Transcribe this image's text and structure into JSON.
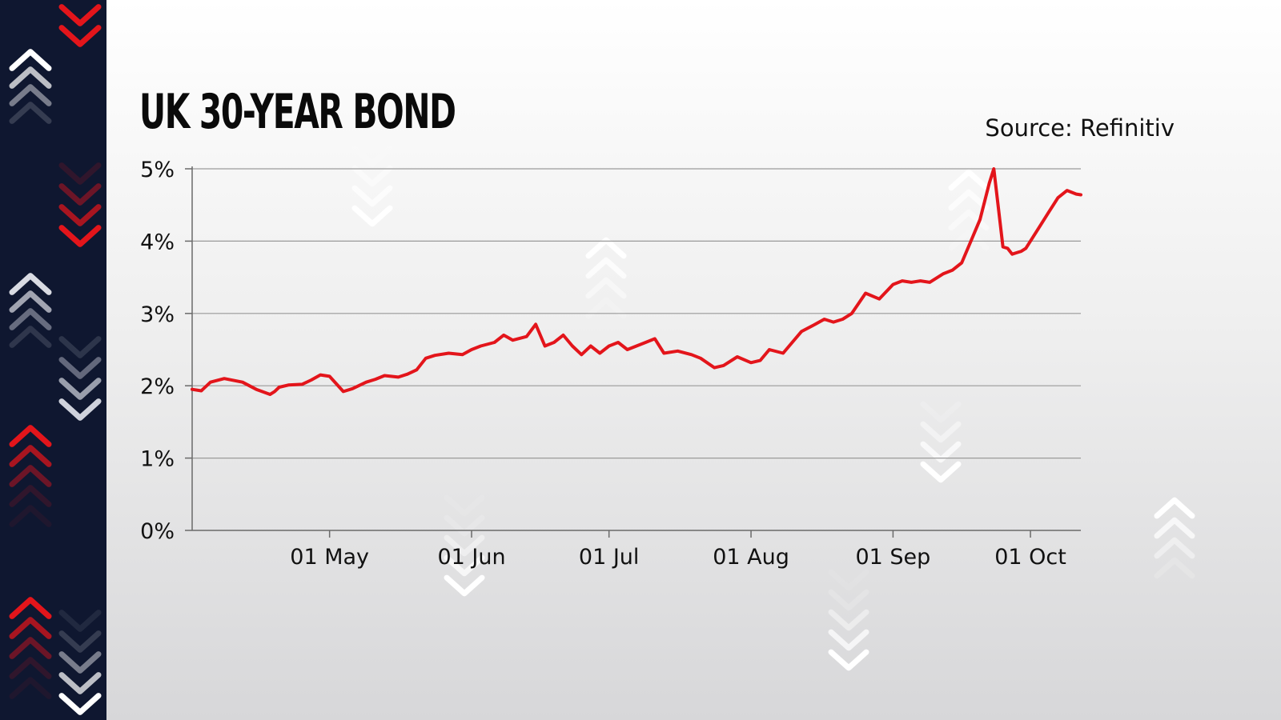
{
  "chart_data": {
    "type": "line",
    "title": "UK 30-YEAR BOND",
    "source": "Source: Refinitiv",
    "xlabel": "",
    "ylabel": "",
    "x_range": [
      "2022-04-01",
      "2022-10-12"
    ],
    "ylim": [
      0,
      5
    ],
    "y_ticks": [
      0,
      1,
      2,
      3,
      4,
      5
    ],
    "y_tick_labels": [
      "0%",
      "1%",
      "2%",
      "3%",
      "4%",
      "5%"
    ],
    "x_ticks": [
      "2022-05-01",
      "2022-06-01",
      "2022-07-01",
      "2022-08-01",
      "2022-09-01",
      "2022-10-01"
    ],
    "x_tick_labels": [
      "01 May",
      "01 Jun",
      "01 Jul",
      "01 Aug",
      "01 Sep",
      "01 Oct"
    ],
    "grid": true,
    "line_color": "#e3151b",
    "series": [
      {
        "name": "",
        "x": [
          "2022-04-01",
          "2022-04-03",
          "2022-04-05",
          "2022-04-08",
          "2022-04-12",
          "2022-04-15",
          "2022-04-18",
          "2022-04-19",
          "2022-04-20",
          "2022-04-22",
          "2022-04-25",
          "2022-04-27",
          "2022-04-29",
          "2022-05-01",
          "2022-05-04",
          "2022-05-06",
          "2022-05-09",
          "2022-05-11",
          "2022-05-13",
          "2022-05-16",
          "2022-05-18",
          "2022-05-20",
          "2022-05-22",
          "2022-05-24",
          "2022-05-27",
          "2022-05-30",
          "2022-06-01",
          "2022-06-03",
          "2022-06-06",
          "2022-06-08",
          "2022-06-10",
          "2022-06-13",
          "2022-06-15",
          "2022-06-17",
          "2022-06-19",
          "2022-06-21",
          "2022-06-23",
          "2022-06-25",
          "2022-06-27",
          "2022-06-29",
          "2022-07-01",
          "2022-07-03",
          "2022-07-05",
          "2022-07-07",
          "2022-07-09",
          "2022-07-11",
          "2022-07-13",
          "2022-07-16",
          "2022-07-19",
          "2022-07-21",
          "2022-07-24",
          "2022-07-26",
          "2022-07-29",
          "2022-08-01",
          "2022-08-03",
          "2022-08-05",
          "2022-08-08",
          "2022-08-10",
          "2022-08-12",
          "2022-08-15",
          "2022-08-17",
          "2022-08-19",
          "2022-08-21",
          "2022-08-23",
          "2022-08-26",
          "2022-08-29",
          "2022-09-01",
          "2022-09-03",
          "2022-09-05",
          "2022-09-07",
          "2022-09-09",
          "2022-09-12",
          "2022-09-14",
          "2022-09-16",
          "2022-09-18",
          "2022-09-20",
          "2022-09-22",
          "2022-09-23",
          "2022-09-25",
          "2022-09-26",
          "2022-09-27",
          "2022-09-28",
          "2022-09-29",
          "2022-09-30",
          "2022-10-03",
          "2022-10-05",
          "2022-10-07",
          "2022-10-09",
          "2022-10-11",
          "2022-10-12"
        ],
        "values": [
          1.95,
          1.93,
          2.05,
          2.1,
          2.05,
          1.95,
          1.88,
          1.92,
          1.98,
          2.01,
          2.02,
          2.08,
          2.15,
          2.13,
          1.92,
          1.96,
          2.05,
          2.09,
          2.14,
          2.12,
          2.16,
          2.22,
          2.38,
          2.42,
          2.45,
          2.43,
          2.5,
          2.55,
          2.6,
          2.7,
          2.63,
          2.68,
          2.85,
          2.55,
          2.6,
          2.7,
          2.55,
          2.43,
          2.55,
          2.45,
          2.55,
          2.6,
          2.5,
          2.55,
          2.6,
          2.65,
          2.45,
          2.48,
          2.43,
          2.38,
          2.25,
          2.28,
          2.4,
          2.32,
          2.35,
          2.5,
          2.45,
          2.6,
          2.75,
          2.85,
          2.92,
          2.88,
          2.92,
          3.0,
          3.28,
          3.2,
          3.4,
          3.45,
          3.43,
          3.45,
          3.43,
          3.55,
          3.6,
          3.7,
          4.0,
          4.3,
          4.8,
          5.0,
          3.92,
          3.9,
          3.82,
          3.84,
          3.86,
          3.9,
          4.2,
          4.4,
          4.6,
          4.7,
          4.65,
          4.64
        ]
      }
    ]
  },
  "decor": {
    "strip_color": "#0f1730",
    "red": "#e3151b",
    "icon": "chevron-icon"
  }
}
